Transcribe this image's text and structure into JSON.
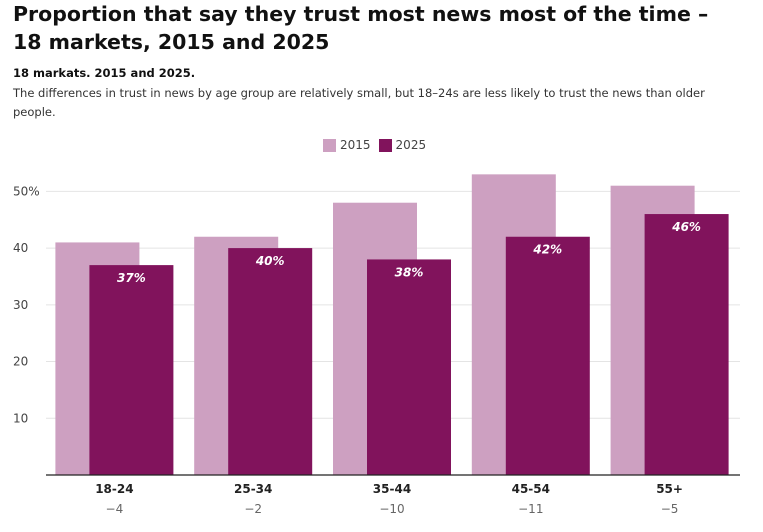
{
  "title": "Proportion that say they trust most news most of the time – 18 markets, 2015 and 2025",
  "subtitle": "18 markats. 2015 and 2025.",
  "description": "The differences in trust in news by age group are relatively small, but 18–24s are less likely to trust the news than older people.",
  "colors": {
    "series_2015": "#cda0c1",
    "series_2025": "#81135c",
    "grid": "#e4e4e4",
    "axis": "#222222"
  },
  "chart_data": {
    "type": "bar",
    "categories": [
      "18-24",
      "25-34",
      "35-44",
      "45-54",
      "55+"
    ],
    "category_sublabels": [
      "−4",
      "−2",
      "−10",
      "−11",
      "−5"
    ],
    "series": [
      {
        "name": "2015",
        "values": [
          41,
          42,
          48,
          53,
          51
        ]
      },
      {
        "name": "2025",
        "values": [
          37,
          40,
          38,
          42,
          46
        ],
        "data_labels": [
          "37%",
          "40%",
          "38%",
          "42%",
          "46%"
        ]
      }
    ],
    "y_ticks": [
      "10",
      "20",
      "30",
      "40",
      "50%"
    ],
    "y_tick_values": [
      10,
      20,
      30,
      40,
      50
    ],
    "ylim": [
      0,
      55
    ],
    "grid": true,
    "legend_position": "top-center"
  }
}
